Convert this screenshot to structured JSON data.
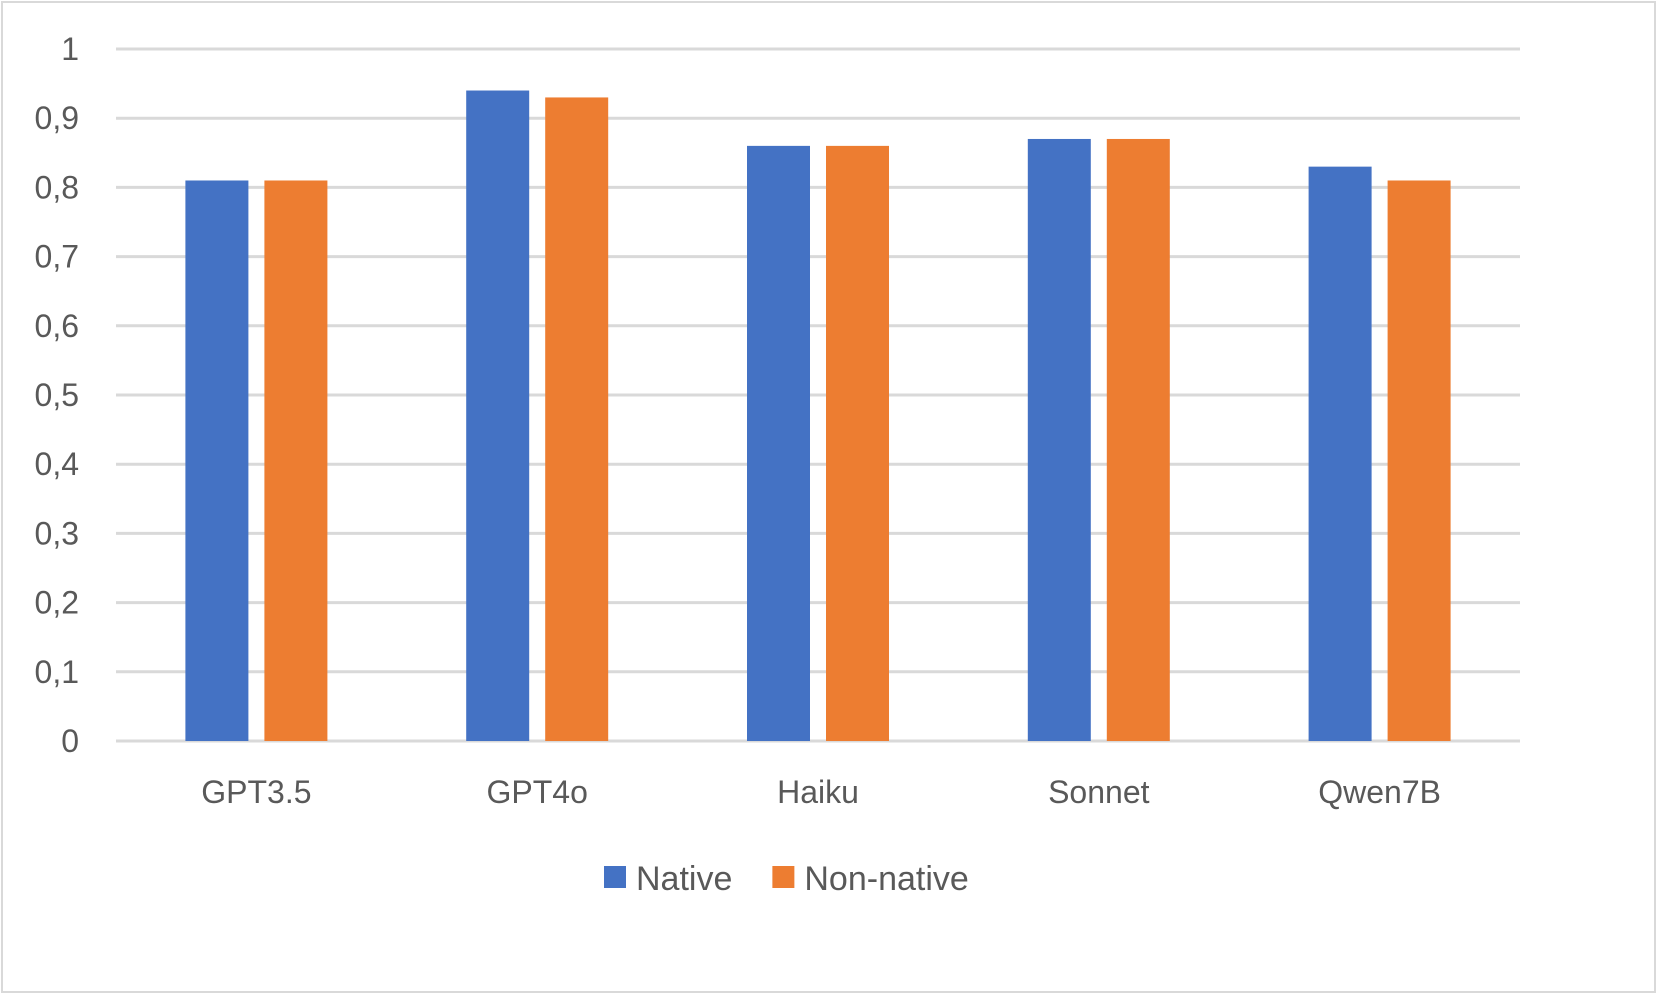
{
  "chart_data": {
    "type": "bar",
    "title": "",
    "xlabel": "",
    "ylabel": "",
    "categories": [
      "GPT3.5",
      "GPT4o",
      "Haiku",
      "Sonnet",
      "Qwen7B"
    ],
    "series": [
      {
        "name": "Native",
        "color": "#4472c4",
        "values": [
          0.81,
          0.94,
          0.86,
          0.87,
          0.83
        ]
      },
      {
        "name": "Non-native",
        "color": "#ed7d31",
        "values": [
          0.81,
          0.93,
          0.86,
          0.87,
          0.81
        ]
      }
    ],
    "ylim": [
      0,
      1
    ],
    "yticks": [
      "0",
      "0,1",
      "0,2",
      "0,3",
      "0,4",
      "0,5",
      "0,6",
      "0,7",
      "0,8",
      "0,9",
      "1"
    ],
    "grid": true,
    "legend_position": "bottom"
  }
}
